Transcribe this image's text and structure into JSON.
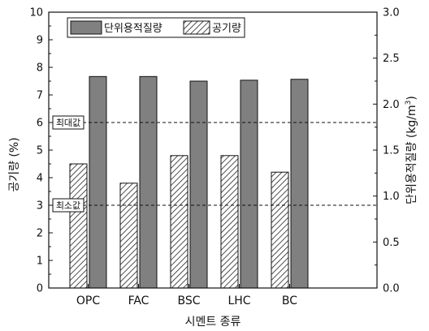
{
  "chart_data": {
    "type": "bar",
    "categories": [
      "OPC",
      "FAC",
      "BSC",
      "LHC",
      "BC"
    ],
    "xlabel": "시멘트 종류",
    "ylabel_left": "공기량 (%)",
    "ylabel_right_parts": [
      "단위용적질량 (kg/m",
      "3",
      ")"
    ],
    "left_axis": {
      "ylim": [
        0,
        10
      ],
      "ticks": [
        "0",
        "1",
        "2",
        "3",
        "4",
        "5",
        "6",
        "7",
        "8",
        "9",
        "10"
      ]
    },
    "right_axis": {
      "ylim": [
        0.0,
        3.0
      ],
      "ticks": [
        "0.0",
        "0.5",
        "1.0",
        "1.5",
        "2.0",
        "2.5",
        "3.0"
      ]
    },
    "series": [
      {
        "name": "공기량",
        "axis": "left",
        "pattern": "hatched",
        "color": "#ffffff",
        "values": [
          4.5,
          3.8,
          4.8,
          4.8,
          4.2
        ]
      },
      {
        "name": "단위용적질량",
        "axis": "right",
        "pattern": "solid",
        "color": "#808080",
        "values": [
          2.3,
          2.3,
          2.25,
          2.26,
          2.27
        ]
      }
    ],
    "reference_lines": [
      {
        "label": "최대값",
        "value": 6,
        "axis": "left",
        "style": "dashed"
      },
      {
        "label": "최소값",
        "value": 3,
        "axis": "left",
        "style": "dashed"
      }
    ],
    "legend": {
      "position": "top-left",
      "order": [
        "단위용적질량",
        "공기량"
      ]
    },
    "grid": false
  }
}
